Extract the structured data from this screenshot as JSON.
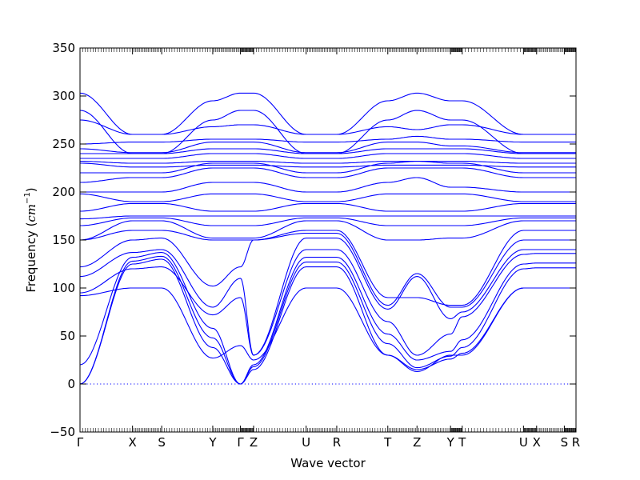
{
  "chart_data": {
    "type": "line",
    "xlabel": "Wave vector",
    "ylabel_main": "Frequency (",
    "ylabel_unit": "cm",
    "ylabel_exp": "−1",
    "ylabel_close": ")",
    "ylim": [
      -50,
      350
    ],
    "xlim": [
      0,
      17.0
    ],
    "yticks": [
      -50,
      0,
      50,
      100,
      150,
      200,
      250,
      300,
      350
    ],
    "ytick_labels": [
      "−50",
      "0",
      "50",
      "100",
      "150",
      "200",
      "250",
      "300",
      "350"
    ],
    "zero_line": 0,
    "line_color": "#0000ff",
    "grid": false,
    "xticks": [
      {
        "label": "Γ",
        "x": 0.0
      },
      {
        "label": "X",
        "x": 1.8
      },
      {
        "label": "S",
        "x": 2.8
      },
      {
        "label": "Y",
        "x": 4.55
      },
      {
        "label": "Γ",
        "x": 5.5
      },
      {
        "label": "Z",
        "x": 5.95
      },
      {
        "label": "U",
        "x": 7.75
      },
      {
        "label": "R",
        "x": 8.8
      },
      {
        "label": "T",
        "x": 10.55
      },
      {
        "label": "Z",
        "x": 11.55
      },
      {
        "label": "Y",
        "x": 12.7
      },
      {
        "label": "T",
        "x": 13.1
      },
      {
        "label": "U",
        "x": 15.2
      },
      {
        "label": "X",
        "x": 15.65
      },
      {
        "label": "S",
        "x": 16.6
      },
      {
        "label": "R",
        "x": 17.0
      }
    ],
    "segments": [
      [
        0.0,
        1.8
      ],
      [
        1.8,
        2.8
      ],
      [
        2.8,
        4.55
      ],
      [
        4.55,
        5.5
      ],
      [
        5.5,
        5.95
      ],
      [
        5.95,
        7.75
      ],
      [
        7.75,
        8.8
      ],
      [
        8.8,
        10.55
      ],
      [
        10.55,
        11.55
      ],
      [
        11.55,
        12.7
      ],
      [
        12.7,
        13.1
      ],
      [
        13.1,
        15.2
      ],
      [
        15.2,
        15.65
      ],
      [
        15.65,
        16.6
      ],
      [
        16.6,
        17.0
      ]
    ],
    "series": [
      {
        "values": [
          0,
          125,
          130,
          38,
          0,
          15,
          122,
          122,
          30,
          15,
          26,
          32,
          100,
          100,
          100,
          100
        ]
      },
      {
        "values": [
          0,
          128,
          133,
          48,
          0,
          18,
          127,
          127,
          42,
          17,
          29,
          38,
          120,
          121,
          121,
          121
        ]
      },
      {
        "values": [
          20,
          132,
          137,
          58,
          0,
          20,
          132,
          132,
          52,
          25,
          34,
          46,
          125,
          126,
          126,
          126
        ]
      },
      {
        "values": [
          92,
          100,
          100,
          27,
          40,
          25,
          100,
          100,
          30,
          13,
          30,
          30,
          100,
          100,
          100,
          100
        ]
      },
      {
        "values": [
          95,
          120,
          122,
          72,
          90,
          30,
          140,
          140,
          65,
          30,
          52,
          70,
          135,
          136,
          136,
          136
        ]
      },
      {
        "values": [
          112,
          137,
          140,
          80,
          110,
          30,
          152,
          152,
          78,
          112,
          68,
          75,
          140,
          140,
          140,
          140
        ]
      },
      {
        "values": [
          122,
          150,
          152,
          102,
          122,
          150,
          157,
          157,
          82,
          115,
          80,
          80,
          150,
          150,
          150,
          150
        ]
      },
      {
        "values": [
          150,
          160,
          160,
          150,
          150,
          150,
          160,
          160,
          90,
          90,
          82,
          82,
          160,
          160,
          160,
          160
        ]
      },
      {
        "values": [
          150,
          170,
          170,
          152,
          152,
          152,
          170,
          170,
          150,
          150,
          152,
          152,
          170,
          170,
          170,
          170
        ]
      },
      {
        "values": [
          165,
          173,
          173,
          165,
          165,
          165,
          173,
          173,
          165,
          165,
          165,
          165,
          173,
          173,
          173,
          173
        ]
      },
      {
        "values": [
          172,
          175,
          175,
          175,
          175,
          175,
          175,
          175,
          175,
          175,
          175,
          175,
          175,
          175,
          175,
          175
        ]
      },
      {
        "values": [
          180,
          188,
          188,
          180,
          180,
          180,
          188,
          188,
          180,
          180,
          180,
          180,
          188,
          188,
          188,
          188
        ]
      },
      {
        "values": [
          198,
          190,
          190,
          198,
          198,
          198,
          190,
          190,
          198,
          198,
          198,
          198,
          190,
          190,
          190,
          190
        ]
      },
      {
        "values": [
          200,
          200,
          200,
          210,
          210,
          210,
          200,
          200,
          210,
          215,
          205,
          205,
          200,
          200,
          200,
          200
        ]
      },
      {
        "values": [
          210,
          215,
          215,
          225,
          225,
          225,
          215,
          215,
          225,
          225,
          225,
          225,
          215,
          215,
          215,
          215
        ]
      },
      {
        "values": [
          220,
          220,
          220,
          230,
          230,
          230,
          220,
          220,
          230,
          232,
          230,
          230,
          220,
          220,
          220,
          220
        ]
      },
      {
        "values": [
          230,
          226,
          226,
          228,
          228,
          228,
          226,
          226,
          228,
          228,
          228,
          228,
          226,
          226,
          226,
          226
        ]
      },
      {
        "values": [
          232,
          230,
          230,
          232,
          232,
          232,
          230,
          230,
          232,
          232,
          232,
          232,
          230,
          230,
          230,
          230
        ]
      },
      {
        "values": [
          235,
          235,
          235,
          240,
          240,
          240,
          235,
          235,
          240,
          240,
          240,
          240,
          235,
          235,
          235,
          235
        ]
      },
      {
        "values": [
          240,
          240,
          240,
          245,
          245,
          245,
          240,
          240,
          245,
          245,
          245,
          245,
          240,
          240,
          240,
          240
        ]
      },
      {
        "values": [
          245,
          241,
          241,
          252,
          252,
          252,
          241,
          241,
          252,
          252,
          248,
          248,
          241,
          241,
          241,
          241
        ]
      },
      {
        "values": [
          250,
          252,
          252,
          255,
          255,
          255,
          252,
          252,
          255,
          258,
          255,
          255,
          252,
          252,
          252,
          252
        ]
      },
      {
        "values": [
          275,
          260,
          260,
          268,
          270,
          270,
          260,
          260,
          268,
          265,
          270,
          270,
          260,
          260,
          260,
          260
        ]
      },
      {
        "values": [
          285,
          240,
          240,
          275,
          285,
          285,
          240,
          240,
          275,
          285,
          275,
          275,
          240,
          240,
          240,
          240
        ]
      },
      {
        "values": [
          303,
          260,
          260,
          295,
          303,
          303,
          260,
          260,
          295,
          303,
          295,
          295,
          260,
          260,
          260,
          260
        ]
      }
    ]
  }
}
